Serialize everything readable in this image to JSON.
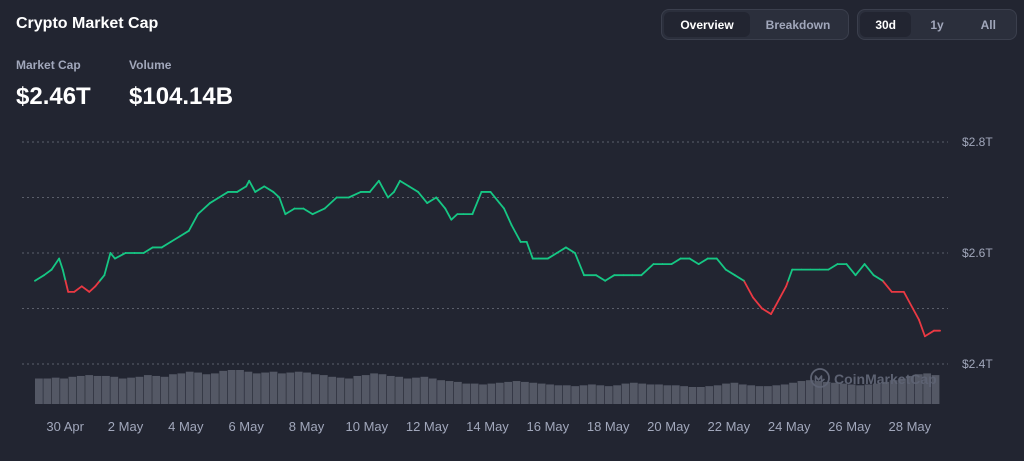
{
  "header": {
    "title": "Crypto Market Cap",
    "view_tabs": [
      {
        "label": "Overview",
        "active": true
      },
      {
        "label": "Breakdown",
        "active": false
      }
    ],
    "range_tabs": [
      {
        "label": "30d",
        "active": true
      },
      {
        "label": "1y",
        "active": false
      },
      {
        "label": "All",
        "active": false
      }
    ]
  },
  "metrics": {
    "market_cap": {
      "label": "Market Cap",
      "value": "$2.46T"
    },
    "volume": {
      "label": "Volume",
      "value": "$104.14B"
    }
  },
  "watermark": {
    "text": "CoinMarketCap",
    "icon": "coinmarketcap-logo-icon"
  },
  "colors": {
    "up": "#16c784",
    "down": "#ea3943",
    "background": "#222531",
    "grid": "#8a8f9c",
    "axis_text": "#a1a7bb",
    "volume_bar": "#5a5e6b"
  },
  "chart_data": {
    "type": "line",
    "ylim": [
      2.4,
      2.8
    ],
    "yticks": [
      {
        "value": 2.8,
        "label": "$2.8T"
      },
      {
        "value": 2.6,
        "label": "$2.6T"
      },
      {
        "value": 2.4,
        "label": "$2.4T"
      }
    ],
    "reference_value": 2.55,
    "xticks": [
      {
        "x": 1.0,
        "label": "30 Apr"
      },
      {
        "x": 3.0,
        "label": "2 May"
      },
      {
        "x": 5.0,
        "label": "4 May"
      },
      {
        "x": 7.0,
        "label": "6 May"
      },
      {
        "x": 9.0,
        "label": "8 May"
      },
      {
        "x": 11.0,
        "label": "10 May"
      },
      {
        "x": 13.0,
        "label": "12 May"
      },
      {
        "x": 15.0,
        "label": "14 May"
      },
      {
        "x": 17.0,
        "label": "16 May"
      },
      {
        "x": 19.0,
        "label": "18 May"
      },
      {
        "x": 21.0,
        "label": "20 May"
      },
      {
        "x": 23.0,
        "label": "22 May"
      },
      {
        "x": 25.0,
        "label": "24 May"
      },
      {
        "x": 27.0,
        "label": "26 May"
      },
      {
        "x": 29.0,
        "label": "28 May"
      }
    ],
    "series": [
      {
        "x": [
          0.0,
          0.3,
          0.55,
          0.8,
          0.92,
          1.1,
          1.3,
          1.55,
          1.8,
          2.0,
          2.3,
          2.5,
          2.65,
          3.0,
          3.3,
          3.6,
          3.9,
          4.2,
          4.5,
          4.8,
          5.1,
          5.4,
          5.8,
          6.1,
          6.4,
          6.7,
          7.0,
          7.1,
          7.3,
          7.6,
          7.9,
          8.1,
          8.3,
          8.6,
          8.9,
          9.2,
          9.6,
          10.0,
          10.4,
          10.8,
          11.1,
          11.4,
          11.7,
          11.9,
          12.1,
          12.4,
          12.7,
          13.0,
          13.3,
          13.6,
          13.8,
          14.0,
          14.2,
          14.5,
          14.8,
          15.1,
          15.4,
          15.55,
          15.8,
          16.1,
          16.3,
          16.5,
          16.7,
          17.0,
          17.3,
          17.6,
          17.9,
          18.2,
          18.6,
          18.9,
          19.2,
          19.5,
          19.8,
          20.1,
          20.5,
          20.8,
          21.1,
          21.4,
          21.7,
          22.0,
          22.3,
          22.6,
          22.9,
          23.2,
          23.5,
          23.8,
          24.1,
          24.4,
          24.7,
          24.9,
          25.1,
          25.4,
          25.7,
          26.0,
          26.3,
          26.6,
          26.9,
          27.2,
          27.5,
          27.8,
          28.1,
          28.4,
          28.8,
          29.1,
          29.3,
          29.5,
          29.8,
          30.0
        ],
        "values": [
          2.55,
          2.56,
          2.57,
          2.59,
          2.57,
          2.53,
          2.53,
          2.54,
          2.53,
          2.54,
          2.56,
          2.6,
          2.59,
          2.6,
          2.6,
          2.6,
          2.61,
          2.61,
          2.62,
          2.63,
          2.64,
          2.67,
          2.69,
          2.7,
          2.71,
          2.71,
          2.72,
          2.73,
          2.71,
          2.72,
          2.71,
          2.7,
          2.67,
          2.68,
          2.68,
          2.67,
          2.68,
          2.7,
          2.7,
          2.71,
          2.71,
          2.73,
          2.7,
          2.71,
          2.73,
          2.72,
          2.71,
          2.69,
          2.7,
          2.68,
          2.66,
          2.67,
          2.67,
          2.67,
          2.71,
          2.71,
          2.69,
          2.68,
          2.65,
          2.62,
          2.62,
          2.59,
          2.59,
          2.59,
          2.6,
          2.61,
          2.6,
          2.56,
          2.56,
          2.55,
          2.56,
          2.56,
          2.56,
          2.56,
          2.58,
          2.58,
          2.58,
          2.59,
          2.59,
          2.58,
          2.59,
          2.59,
          2.57,
          2.56,
          2.55,
          2.52,
          2.5,
          2.49,
          2.52,
          2.54,
          2.57,
          2.57,
          2.57,
          2.57,
          2.57,
          2.58,
          2.58,
          2.56,
          2.58,
          2.56,
          2.55,
          2.53,
          2.53,
          2.5,
          2.48,
          2.45,
          2.46,
          2.46
        ]
      }
    ],
    "volume": [
      30,
      30,
      31,
      30,
      32,
      33,
      34,
      33,
      33,
      32,
      30,
      31,
      32,
      34,
      33,
      32,
      35,
      36,
      38,
      37,
      35,
      36,
      39,
      40,
      40,
      38,
      36,
      37,
      38,
      36,
      37,
      38,
      37,
      35,
      34,
      32,
      31,
      30,
      33,
      34,
      36,
      35,
      33,
      32,
      30,
      31,
      32,
      30,
      28,
      27,
      26,
      24,
      24,
      23,
      24,
      25,
      26,
      27,
      26,
      25,
      24,
      23,
      22,
      22,
      21,
      22,
      23,
      22,
      21,
      22,
      24,
      25,
      24,
      23,
      23,
      22,
      22,
      21,
      20,
      20,
      21,
      22,
      24,
      25,
      23,
      22,
      21,
      21,
      22,
      23,
      25,
      27,
      28,
      27,
      26,
      25,
      24,
      23,
      22,
      23,
      24,
      26,
      28,
      30,
      33,
      35,
      36,
      34
    ]
  }
}
